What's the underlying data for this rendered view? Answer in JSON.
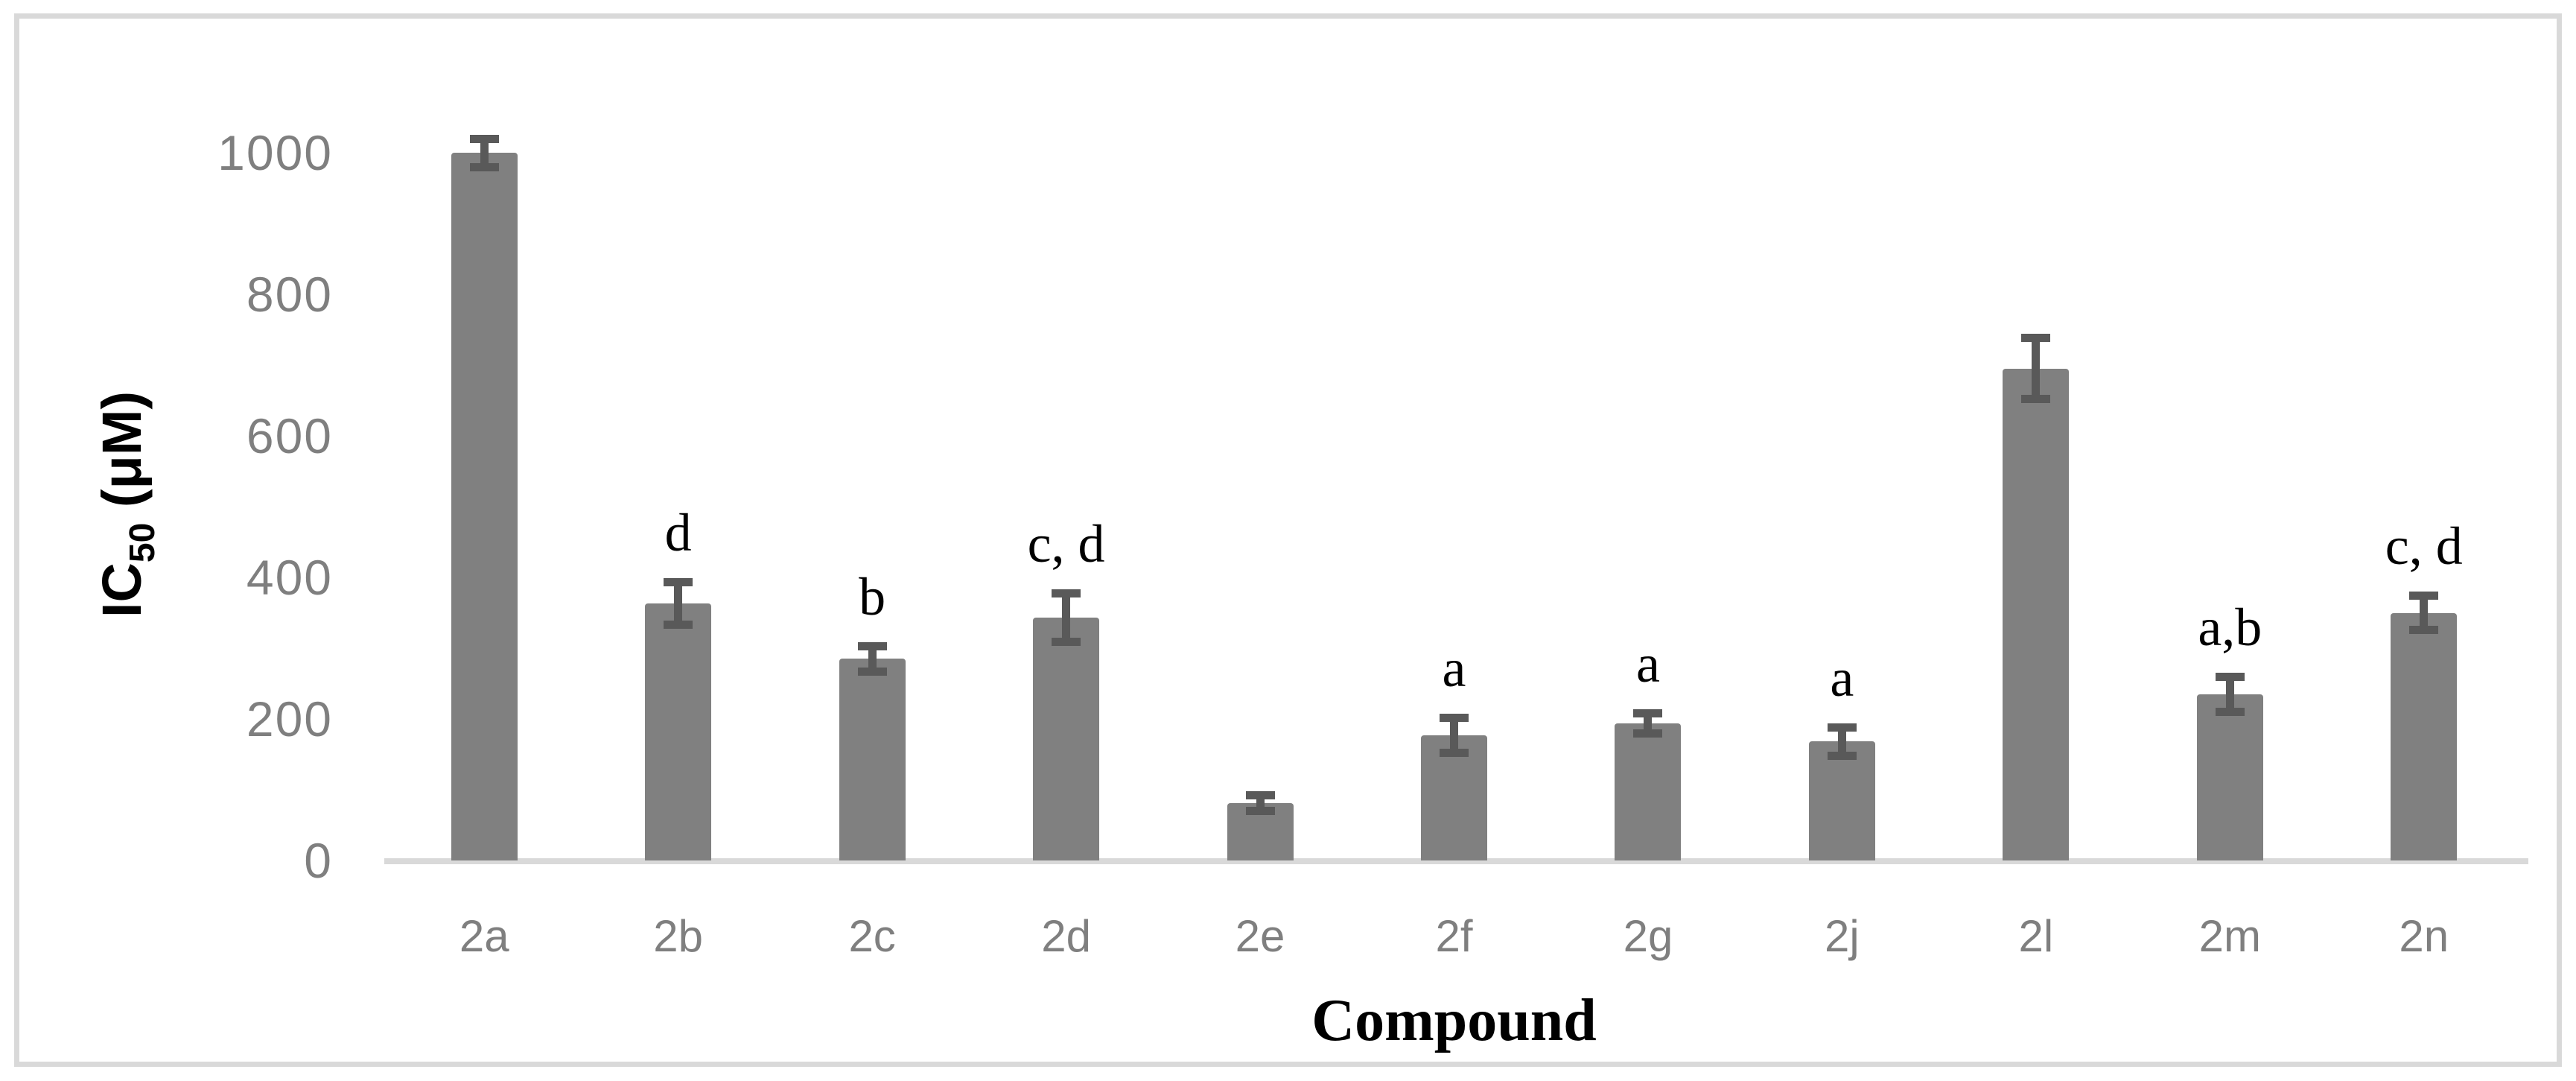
{
  "figure": {
    "background": "#ffffff",
    "frame_border_color": "#d9d9d9"
  },
  "chart_data": {
    "type": "bar",
    "title": "",
    "xlabel": "Compound",
    "ylabel": "IC50 (μM)",
    "ylabel_parts": {
      "prefix": "IC",
      "subscript": "50",
      "suffix": " (μM)"
    },
    "ylim": [
      0,
      1000
    ],
    "yticks": [
      0,
      200,
      400,
      600,
      800,
      1000
    ],
    "grid": false,
    "legend": "none",
    "categories": [
      "2a",
      "2b",
      "2c",
      "2d",
      "2e",
      "2f",
      "2g",
      "2j",
      "2l",
      "2m",
      "2n"
    ],
    "values": [
      1000,
      363,
      285,
      343,
      81,
      177,
      194,
      168,
      695,
      235,
      350
    ],
    "errors": [
      20,
      30,
      18,
      34,
      11,
      25,
      14,
      20,
      43,
      25,
      24
    ],
    "annotations": [
      "",
      "d",
      "b",
      "c, d",
      "",
      "a",
      "a",
      "a",
      "",
      "a,b",
      "c, d"
    ],
    "colors": {
      "bar": "#808080",
      "error_bar": "#595959",
      "axis_line": "#d9d9d9",
      "tick_label": "#7f7f7f"
    }
  }
}
